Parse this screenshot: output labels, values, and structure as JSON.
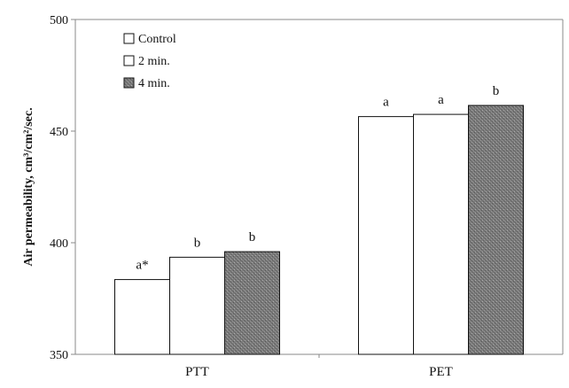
{
  "chart_data": {
    "type": "bar",
    "ylabel": "Air permeability, cm³/cm²/sec.",
    "ylim": [
      350,
      500
    ],
    "yticks": [
      350,
      400,
      450,
      500
    ],
    "categories": [
      "PTT",
      "PET"
    ],
    "legend_position": "top-left",
    "series": [
      {
        "name": "Control",
        "color": "#ffffff",
        "pattern": "none",
        "values": [
          383.5,
          456.5
        ],
        "labels": [
          "a*",
          "a"
        ]
      },
      {
        "name": "2 min.",
        "color": "#ffffff",
        "pattern": "none",
        "values": [
          393.5,
          457.5
        ],
        "labels": [
          "b",
          "a"
        ]
      },
      {
        "name": "4 min.",
        "color": "#808080",
        "pattern": "speckle",
        "values": [
          396,
          461.5
        ],
        "labels": [
          "b",
          "b"
        ]
      }
    ]
  }
}
